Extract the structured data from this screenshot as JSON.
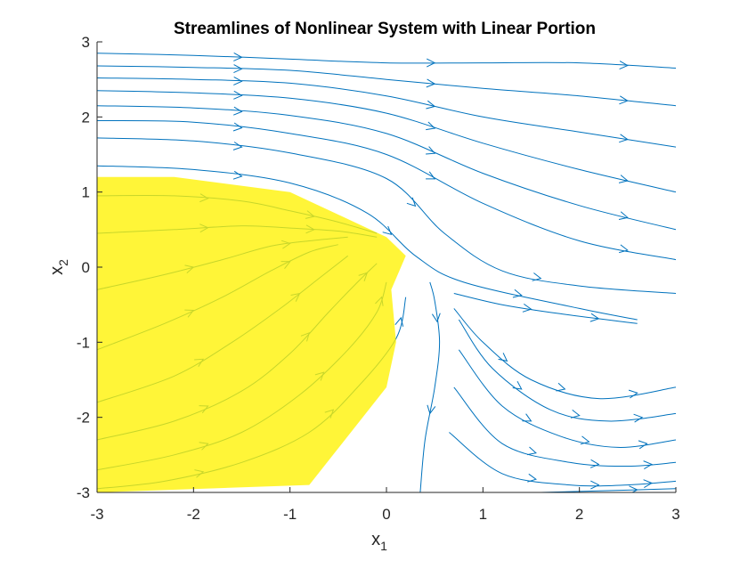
{
  "chart_data": {
    "type": "streamline",
    "title": "Streamlines of Nonlinear System with Linear Portion",
    "xlabel": {
      "base": "x",
      "sub": "1"
    },
    "ylabel": {
      "base": "x",
      "sub": "2"
    },
    "xlim": [
      -3,
      3
    ],
    "ylim": [
      -3,
      3
    ],
    "xticks": [
      -3,
      -2,
      -1,
      0,
      1,
      2,
      3
    ],
    "yticks": [
      -3,
      -2,
      -1,
      0,
      1,
      2,
      3
    ],
    "xtick_labels": [
      "-3",
      "-2",
      "-1",
      "0",
      "1",
      "2",
      "3"
    ],
    "ytick_labels": [
      "-3",
      "-2",
      "-1",
      "0",
      "1",
      "2",
      "3"
    ],
    "grid": false,
    "stream_color": "#0072BD",
    "highlight_color": "#FFF200",
    "highlight_region": [
      [
        -3,
        1.2
      ],
      [
        -2.2,
        1.2
      ],
      [
        -1.0,
        1.0
      ],
      [
        0.0,
        0.4
      ],
      [
        0.2,
        0.15
      ],
      [
        0.05,
        -0.3
      ],
      [
        0.1,
        -1.0
      ],
      [
        0.0,
        -1.6
      ],
      [
        -0.8,
        -2.9
      ],
      [
        -3,
        -3
      ]
    ],
    "streamlines": [
      [
        [
          -3.0,
          2.85
        ],
        [
          -2.0,
          2.82
        ],
        [
          -1.0,
          2.77
        ],
        [
          0.0,
          2.72
        ],
        [
          1.0,
          2.72
        ],
        [
          2.0,
          2.72
        ],
        [
          3.0,
          2.65
        ]
      ],
      [
        [
          -3.0,
          2.68
        ],
        [
          -2.0,
          2.66
        ],
        [
          -1.0,
          2.62
        ],
        [
          0.0,
          2.5
        ],
        [
          1.0,
          2.38
        ],
        [
          2.0,
          2.28
        ],
        [
          3.0,
          2.15
        ]
      ],
      [
        [
          -3.0,
          2.52
        ],
        [
          -2.0,
          2.5
        ],
        [
          -1.0,
          2.45
        ],
        [
          0.0,
          2.28
        ],
        [
          1.0,
          2.0
        ],
        [
          2.0,
          1.8
        ],
        [
          3.0,
          1.6
        ]
      ],
      [
        [
          -3.0,
          2.35
        ],
        [
          -2.0,
          2.32
        ],
        [
          -1.0,
          2.25
        ],
        [
          0.0,
          2.05
        ],
        [
          1.0,
          1.65
        ],
        [
          2.0,
          1.3
        ],
        [
          3.0,
          1.0
        ]
      ],
      [
        [
          -3.0,
          2.15
        ],
        [
          -2.0,
          2.12
        ],
        [
          -1.0,
          2.02
        ],
        [
          0.0,
          1.78
        ],
        [
          1.0,
          1.25
        ],
        [
          2.0,
          0.82
        ],
        [
          3.0,
          0.5
        ]
      ],
      [
        [
          -3.0,
          1.95
        ],
        [
          -2.0,
          1.93
        ],
        [
          -1.0,
          1.78
        ],
        [
          0.0,
          1.5
        ],
        [
          1.0,
          0.85
        ],
        [
          2.0,
          0.35
        ],
        [
          3.0,
          0.1
        ]
      ],
      [
        [
          -3.0,
          1.72
        ],
        [
          -2.0,
          1.68
        ],
        [
          -1.0,
          1.52
        ],
        [
          0.0,
          1.18
        ],
        [
          0.6,
          0.45
        ],
        [
          1.2,
          -0.05
        ],
        [
          2.0,
          -0.25
        ],
        [
          3.0,
          -0.35
        ]
      ],
      [
        [
          -3.0,
          1.35
        ],
        [
          -2.0,
          1.3
        ],
        [
          -1.0,
          1.12
        ],
        [
          -0.2,
          0.72
        ],
        [
          0.3,
          0.15
        ],
        [
          0.8,
          -0.2
        ],
        [
          2.0,
          -0.55
        ],
        [
          2.6,
          -0.7
        ]
      ],
      [
        [
          -3.0,
          -2.95
        ],
        [
          -2.3,
          -2.85
        ],
        [
          -1.5,
          -2.6
        ],
        [
          -0.8,
          -2.2
        ],
        [
          -0.3,
          -1.6
        ],
        [
          0.1,
          -0.95
        ],
        [
          0.2,
          -0.4
        ]
      ],
      [
        [
          -3.0,
          -2.7
        ],
        [
          -2.2,
          -2.5
        ],
        [
          -1.5,
          -2.2
        ],
        [
          -0.9,
          -1.7
        ],
        [
          -0.4,
          -1.1
        ],
        [
          -0.1,
          -0.6
        ],
        [
          0.0,
          -0.2
        ]
      ],
      [
        [
          -3.0,
          -2.3
        ],
        [
          -2.2,
          -2.05
        ],
        [
          -1.5,
          -1.65
        ],
        [
          -1.0,
          -1.15
        ],
        [
          -0.6,
          -0.6
        ],
        [
          -0.3,
          -0.2
        ],
        [
          -0.1,
          0.05
        ]
      ],
      [
        [
          -3.0,
          -1.8
        ],
        [
          -2.2,
          -1.45
        ],
        [
          -1.6,
          -1.0
        ],
        [
          -1.1,
          -0.55
        ],
        [
          -0.7,
          -0.15
        ],
        [
          -0.4,
          0.15
        ]
      ],
      [
        [
          -3.0,
          -1.1
        ],
        [
          -2.3,
          -0.75
        ],
        [
          -1.7,
          -0.4
        ],
        [
          -1.2,
          -0.05
        ],
        [
          -0.8,
          0.2
        ],
        [
          -0.5,
          0.3
        ]
      ],
      [
        [
          -3.0,
          -0.3
        ],
        [
          -2.3,
          -0.1
        ],
        [
          -1.7,
          0.1
        ],
        [
          -1.2,
          0.28
        ],
        [
          -0.8,
          0.35
        ],
        [
          -0.4,
          0.4
        ]
      ],
      [
        [
          -3.0,
          0.45
        ],
        [
          -2.2,
          0.5
        ],
        [
          -1.5,
          0.55
        ],
        [
          -1.0,
          0.52
        ],
        [
          -0.5,
          0.48
        ],
        [
          -0.1,
          0.4
        ]
      ],
      [
        [
          -3.0,
          0.95
        ],
        [
          -2.2,
          0.95
        ],
        [
          -1.5,
          0.88
        ],
        [
          -1.0,
          0.75
        ],
        [
          -0.5,
          0.6
        ],
        [
          -0.1,
          0.45
        ]
      ],
      [
        [
          0.45,
          -0.2
        ],
        [
          0.5,
          -0.45
        ],
        [
          0.55,
          -1.0
        ],
        [
          0.5,
          -1.6
        ],
        [
          0.4,
          -2.3
        ],
        [
          0.35,
          -3.0
        ]
      ],
      [
        [
          0.7,
          -0.35
        ],
        [
          1.2,
          -0.5
        ],
        [
          1.8,
          -0.62
        ],
        [
          2.6,
          -0.75
        ]
      ],
      [
        [
          0.7,
          -0.55
        ],
        [
          1.0,
          -1.0
        ],
        [
          1.5,
          -1.5
        ],
        [
          2.2,
          -1.75
        ],
        [
          3.0,
          -1.6
        ]
      ],
      [
        [
          0.75,
          -0.7
        ],
        [
          1.1,
          -1.35
        ],
        [
          1.7,
          -1.9
        ],
        [
          2.3,
          -2.05
        ],
        [
          3.0,
          -1.95
        ]
      ],
      [
        [
          0.75,
          -1.1
        ],
        [
          1.2,
          -1.85
        ],
        [
          1.8,
          -2.25
        ],
        [
          2.4,
          -2.4
        ],
        [
          3.0,
          -2.3
        ]
      ],
      [
        [
          0.7,
          -1.6
        ],
        [
          1.2,
          -2.35
        ],
        [
          1.9,
          -2.6
        ],
        [
          2.5,
          -2.65
        ],
        [
          3.0,
          -2.6
        ]
      ],
      [
        [
          0.65,
          -2.2
        ],
        [
          1.2,
          -2.75
        ],
        [
          1.9,
          -2.9
        ],
        [
          2.5,
          -2.9
        ],
        [
          3.0,
          -2.85
        ]
      ],
      [
        [
          1.6,
          -3.0
        ],
        [
          2.2,
          -2.98
        ],
        [
          3.0,
          -2.95
        ]
      ]
    ]
  }
}
